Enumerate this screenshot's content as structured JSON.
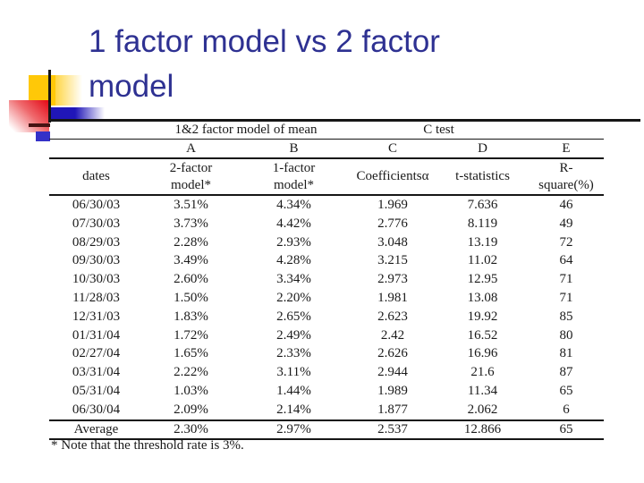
{
  "slide": {
    "title": "1 factor model vs 2 factor\nmodel"
  },
  "table": {
    "group_header_left": "1&2 factor model of mean",
    "group_header_right": "C test",
    "letter_headers": [
      "",
      "A",
      "B",
      "C",
      "D",
      "E"
    ],
    "column_headers": [
      "dates",
      "2-factor\nmodel*",
      "1-factor\nmodel*",
      "Coefficientsα",
      "t-statistics",
      "R-\nsquare(%)"
    ],
    "rows": [
      [
        "06/30/03",
        "3.51%",
        "4.34%",
        "1.969",
        "7.636",
        "46"
      ],
      [
        "07/30/03",
        "3.73%",
        "4.42%",
        "2.776",
        "8.119",
        "49"
      ],
      [
        "08/29/03",
        "2.28%",
        "2.93%",
        "3.048",
        "13.19",
        "72"
      ],
      [
        "09/30/03",
        "3.49%",
        "4.28%",
        "3.215",
        "11.02",
        "64"
      ],
      [
        "10/30/03",
        "2.60%",
        "3.34%",
        "2.973",
        "12.95",
        "71"
      ],
      [
        "11/28/03",
        "1.50%",
        "2.20%",
        "1.981",
        "13.08",
        "71"
      ],
      [
        "12/31/03",
        "1.83%",
        "2.65%",
        "2.623",
        "19.92",
        "85"
      ],
      [
        "01/31/04",
        "1.72%",
        "2.49%",
        "2.42",
        "16.52",
        "80"
      ],
      [
        "02/27/04",
        "1.65%",
        "2.33%",
        "2.626",
        "16.96",
        "81"
      ],
      [
        "03/31/04",
        "2.22%",
        "3.11%",
        "2.944",
        "21.6",
        "87"
      ],
      [
        "05/31/04",
        "1.03%",
        "1.44%",
        "1.989",
        "11.34",
        "65"
      ],
      [
        "06/30/04",
        "2.09%",
        "2.14%",
        "1.877",
        "2.062",
        "6"
      ]
    ],
    "average_row": [
      "Average",
      "2.30%",
      "2.97%",
      "2.537",
      "12.866",
      "65"
    ],
    "footnote": "* Note that the threshold rate is 3%."
  },
  "colors": {
    "title_text": "#2e3192",
    "accent_yellow": "#ffc808",
    "accent_red": "#e30613",
    "accent_blue": "#2016b8",
    "accent_maroon": "#461313",
    "table_line": "#161616",
    "table_text": "#1a1a1a"
  }
}
